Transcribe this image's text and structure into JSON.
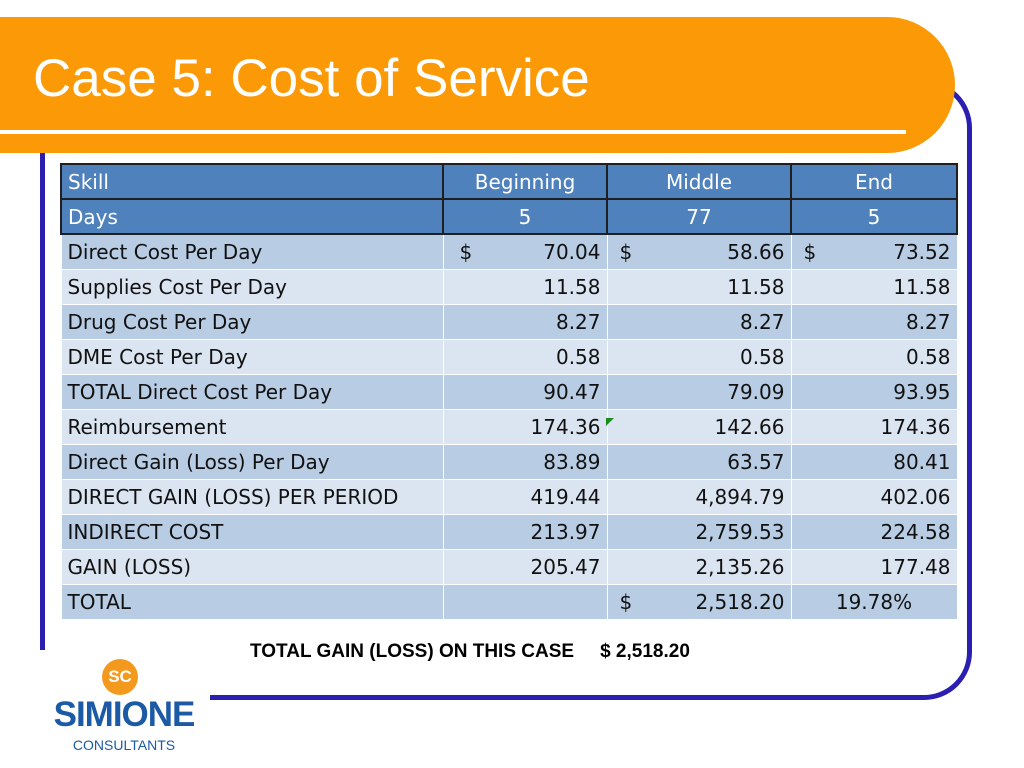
{
  "slide": {
    "title": "Case 5: Cost of Service",
    "summary_label": "TOTAL GAIN (LOSS) ON THIS CASE",
    "summary_value": "$ 2,518.20"
  },
  "logo": {
    "mark": "SC",
    "name": "SIMIONE",
    "sub": "CONSULTANTS"
  },
  "table": {
    "header": [
      "Skill",
      "Beginning",
      "Middle",
      "End"
    ],
    "days": [
      "Days",
      "5",
      "77",
      "5"
    ],
    "currency_symbol": "$",
    "rows": [
      {
        "label": "Direct Cost Per Day",
        "b": "70.04",
        "m": "58.66",
        "e": "73.52"
      },
      {
        "label": "Supplies Cost Per Day",
        "b": "11.58",
        "m": "11.58",
        "e": "11.58"
      },
      {
        "label": "Drug Cost Per Day",
        "b": "8.27",
        "m": "8.27",
        "e": "8.27"
      },
      {
        "label": "DME Cost Per Day",
        "b": "0.58",
        "m": "0.58",
        "e": "0.58"
      },
      {
        "label": "TOTAL Direct Cost Per Day",
        "b": "90.47",
        "m": "79.09",
        "e": "93.95"
      },
      {
        "label": "Reimbursement",
        "b": "174.36",
        "m": "142.66",
        "e": "174.36"
      },
      {
        "label": "Direct Gain (Loss) Per Day",
        "b": "83.89",
        "m": "63.57",
        "e": "80.41"
      },
      {
        "label": "DIRECT GAIN (LOSS) PER PERIOD",
        "b": "419.44",
        "m": "4,894.79",
        "e": "402.06"
      },
      {
        "label": "INDIRECT COST",
        "b": "213.97",
        "m": "2,759.53",
        "e": "224.58"
      },
      {
        "label": "GAIN (LOSS)",
        "b": "205.47",
        "m": "2,135.26",
        "e": "177.48"
      },
      {
        "label": "TOTAL",
        "b": "",
        "m": "2,518.20",
        "e": "19.78%"
      }
    ]
  },
  "colors": {
    "banner": "#fb9a06",
    "frame": "#2a1fb0",
    "header_fill": "#4f81bd",
    "row_dark": "#b8cce4",
    "row_light": "#dbe5f1",
    "logo_blue": "#1d5aa6",
    "logo_orange": "#f39a1e"
  }
}
